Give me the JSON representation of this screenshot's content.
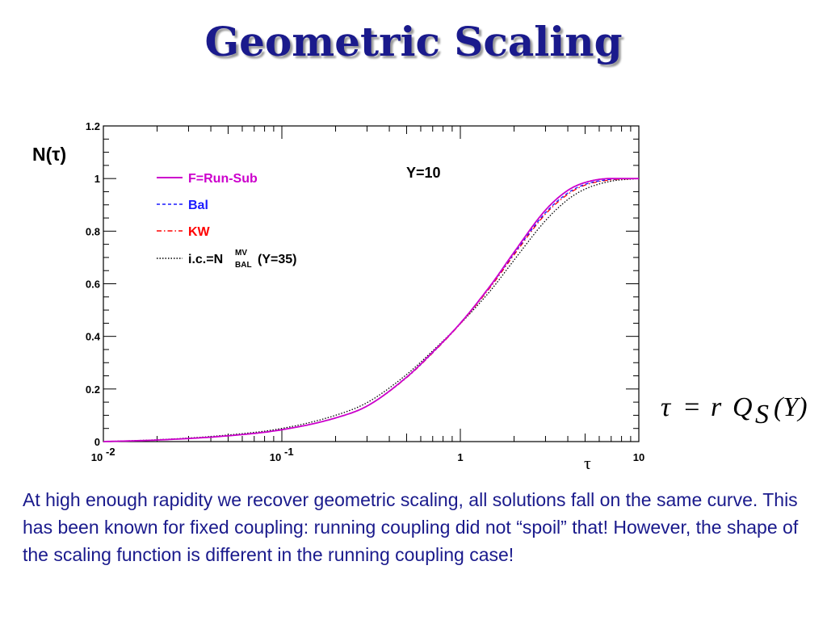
{
  "slide": {
    "title": "Geometric Scaling",
    "caption": "At high enough rapidity we recover geometric scaling, all solutions fall on the same curve. This has been known for fixed coupling: running coupling did not “spoil” that! However, the shape of the scaling function is different in the running coupling case!",
    "formula": {
      "lhs": "τ",
      "eq": "=",
      "r": "r",
      "Q": "Q",
      "sub": "S",
      "arg": "(Y)"
    }
  },
  "chart_data": {
    "type": "line",
    "title": "",
    "annotation": "Y=10",
    "xlabel": "τ",
    "ylabel": "N(τ)",
    "x_scale": "log",
    "xlim": [
      0.01,
      10
    ],
    "ylim": [
      0,
      1.2
    ],
    "x_ticks": [
      {
        "value": 0.01,
        "base": "10",
        "exp": "-2"
      },
      {
        "value": 0.1,
        "base": "10",
        "exp": "-1"
      },
      {
        "value": 1,
        "base": "1",
        "exp": ""
      },
      {
        "value": 10,
        "base": "10",
        "exp": ""
      }
    ],
    "y_ticks": [
      {
        "value": 0,
        "label": "0"
      },
      {
        "value": 0.2,
        "label": "0.2"
      },
      {
        "value": 0.4,
        "label": "0.4"
      },
      {
        "value": 0.6,
        "label": "0.6"
      },
      {
        "value": 0.8,
        "label": "0.8"
      },
      {
        "value": 1,
        "label": "1"
      },
      {
        "value": 1.2,
        "label": "1.2"
      }
    ],
    "grid": false,
    "legend_position": "top-left",
    "series": [
      {
        "name": "F=Run-Sub",
        "color": "#cc00cc",
        "style": "solid",
        "x": [
          0.01,
          0.02,
          0.05,
          0.1,
          0.2,
          0.3,
          0.5,
          0.7,
          1.0,
          1.5,
          2.0,
          3.0,
          4.0,
          5.0,
          7.0,
          10.0
        ],
        "y": [
          0.0,
          0.006,
          0.022,
          0.045,
          0.09,
          0.135,
          0.245,
          0.34,
          0.45,
          0.6,
          0.72,
          0.88,
          0.955,
          0.985,
          1.0,
          1.0
        ]
      },
      {
        "name": "Bal",
        "color": "#1a1aff",
        "style": "dashed",
        "x": [
          0.01,
          0.02,
          0.05,
          0.1,
          0.2,
          0.3,
          0.5,
          0.7,
          1.0,
          1.5,
          2.0,
          3.0,
          4.0,
          5.0,
          7.0,
          10.0
        ],
        "y": [
          0.0,
          0.006,
          0.022,
          0.045,
          0.09,
          0.135,
          0.244,
          0.338,
          0.45,
          0.598,
          0.715,
          0.87,
          0.945,
          0.978,
          0.997,
          1.0
        ]
      },
      {
        "name": "KW",
        "color": "#ff0000",
        "style": "dashdot",
        "x": [
          0.01,
          0.02,
          0.05,
          0.1,
          0.2,
          0.3,
          0.5,
          0.7,
          1.0,
          1.5,
          2.0,
          3.0,
          4.0,
          5.0,
          7.0,
          10.0
        ],
        "y": [
          0.0,
          0.006,
          0.022,
          0.045,
          0.09,
          0.135,
          0.243,
          0.337,
          0.448,
          0.594,
          0.71,
          0.865,
          0.94,
          0.975,
          0.995,
          1.0
        ]
      },
      {
        "name_parts": {
          "main": "i.c.=N",
          "sup": "MV",
          "sub": "BAL",
          "suffix": "(Y=35)"
        },
        "color": "#000000",
        "style": "dotted",
        "x": [
          0.01,
          0.02,
          0.05,
          0.1,
          0.2,
          0.3,
          0.5,
          0.7,
          1.0,
          1.5,
          2.0,
          3.0,
          4.0,
          5.0,
          7.0,
          10.0
        ],
        "y": [
          0.0,
          0.007,
          0.025,
          0.05,
          0.1,
          0.148,
          0.255,
          0.345,
          0.448,
          0.58,
          0.69,
          0.84,
          0.92,
          0.96,
          0.99,
          1.0
        ]
      }
    ]
  }
}
